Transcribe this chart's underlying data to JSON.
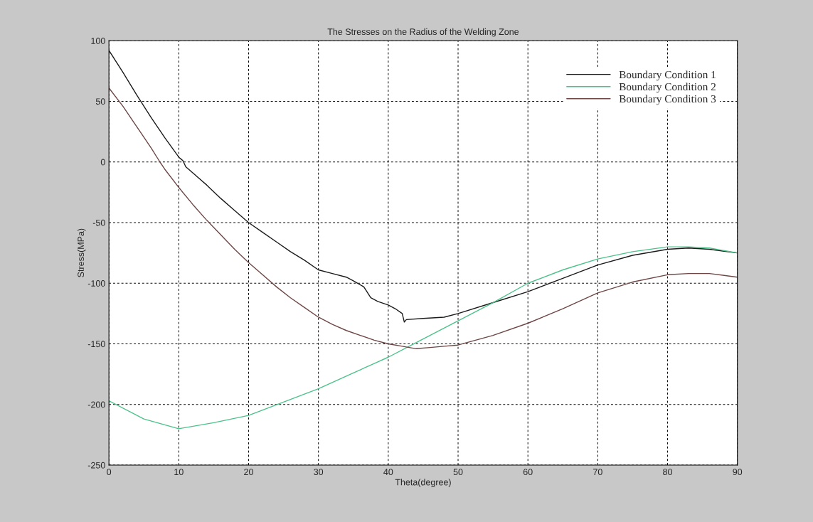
{
  "chart_data": {
    "type": "line",
    "title": "The Stresses on the Radius of the Welding Zone",
    "xlabel": "Theta(degree)",
    "ylabel": "Stress(MPa)",
    "xlim": [
      0,
      90
    ],
    "xticks": [
      0,
      10,
      20,
      30,
      40,
      50,
      60,
      70,
      80,
      90
    ],
    "ylim": [
      -250,
      100
    ],
    "yticks": [
      -250,
      -200,
      -150,
      -100,
      -50,
      0,
      50,
      100
    ],
    "grid": true,
    "legend": "top right",
    "marker": "none",
    "line_style": "solid",
    "series": [
      {
        "name": "Boundary Condition 1",
        "color": "#1a1a1a",
        "x": [
          0,
          2,
          4,
          6,
          8,
          10,
          10.6,
          11,
          12,
          14,
          16,
          18,
          20,
          22,
          24,
          26,
          28,
          30,
          32,
          34,
          35,
          36.5,
          37.5,
          38.5,
          40,
          41,
          42,
          42.3,
          42.6,
          45,
          48,
          50,
          55,
          60,
          65,
          70,
          75,
          80,
          83,
          86,
          90
        ],
        "values": [
          92,
          74,
          55,
          37,
          20,
          4,
          1,
          -4,
          -9,
          -19,
          -30,
          -40,
          -50,
          -58,
          -66,
          -74,
          -81,
          -89,
          -92,
          -95,
          -98,
          -103,
          -112,
          -115,
          -118,
          -121,
          -125,
          -132,
          -130,
          -129,
          -128,
          -125,
          -116,
          -107,
          -96,
          -85,
          -77,
          -72,
          -71,
          -72,
          -75
        ]
      },
      {
        "name": "Boundary Condition 2",
        "color": "#4cc28a",
        "x": [
          0,
          5,
          10,
          15,
          20,
          25,
          30,
          35,
          40,
          43,
          45,
          50,
          55,
          60,
          65,
          70,
          75,
          80,
          83,
          86,
          90
        ],
        "values": [
          -197,
          -212,
          -220,
          -215,
          -209,
          -198,
          -187,
          -174,
          -161,
          -152,
          -146,
          -131,
          -116,
          -100,
          -89,
          -80,
          -74,
          -70,
          -70,
          -71,
          -75
        ]
      },
      {
        "name": "Boundary Condition 3",
        "color": "#6e4646",
        "x": [
          0,
          2,
          4,
          6,
          7.3,
          8,
          10,
          12,
          14,
          16,
          18,
          20,
          22,
          24,
          26,
          28,
          30,
          32,
          34,
          36,
          38,
          40,
          42,
          44,
          46,
          48,
          50,
          55,
          60,
          65,
          70,
          75,
          80,
          83,
          86,
          90
        ],
        "values": [
          61,
          46,
          29,
          12,
          0,
          -6,
          -21,
          -35,
          -48,
          -60,
          -72,
          -83,
          -93,
          -103,
          -112,
          -120,
          -128,
          -134,
          -139,
          -143,
          -147,
          -150,
          -152,
          -154,
          -153,
          -152,
          -151,
          -143,
          -133,
          -121,
          -108,
          -99,
          -93,
          -92,
          -92,
          -95
        ]
      }
    ]
  }
}
